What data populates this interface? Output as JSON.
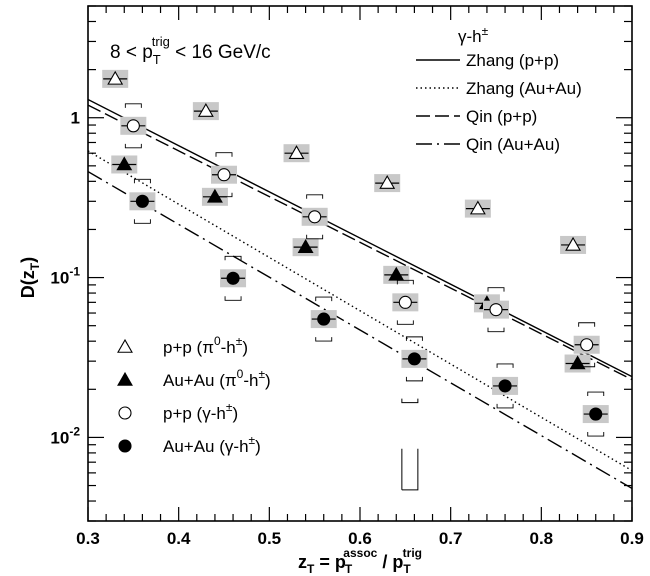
{
  "chart_data": {
    "type": "scatter",
    "xlabel": "z_T = p_T^assoc / p_T^trig",
    "ylabel": "D(z_T)",
    "yscale": "log",
    "xlim": [
      0.3,
      0.9
    ],
    "ylim": [
      0.003,
      5
    ],
    "x_ticks": [
      "0.3",
      "0.4",
      "0.5",
      "0.6",
      "0.7",
      "0.8",
      "0.9"
    ],
    "y_ticks": [
      {
        "value": 1,
        "base": "1",
        "exp": ""
      },
      {
        "value": 0.1,
        "base": "10",
        "exp": "-1"
      },
      {
        "value": 0.01,
        "base": "10",
        "exp": "-2"
      }
    ],
    "annotation": {
      "prefix": "8 < p",
      "sub": "T",
      "sup": "trig",
      "suffix": " < 16 GeV/c"
    },
    "curve_legend_title": "γ-h±",
    "curves": [
      {
        "name": "Zhang (p+p)",
        "style": "solid",
        "points": [
          [
            0.3,
            1.3
          ],
          [
            0.9,
            0.024
          ]
        ]
      },
      {
        "name": "Zhang (Au+Au)",
        "style": "dotted",
        "points": [
          [
            0.3,
            0.62
          ],
          [
            0.9,
            0.0062
          ]
        ]
      },
      {
        "name": "Qin (p+p)",
        "style": "dash",
        "points": [
          [
            0.3,
            1.2
          ],
          [
            0.9,
            0.023
          ]
        ]
      },
      {
        "name": "Qin (Au+Au)",
        "style": "dashdot",
        "points": [
          [
            0.3,
            0.46
          ],
          [
            0.9,
            0.0048
          ]
        ]
      }
    ],
    "series": [
      {
        "name": "p+p (π⁰-h±)",
        "marker": "open-triangle",
        "points": [
          {
            "x": 0.33,
            "y": 1.75,
            "sys": true
          },
          {
            "x": 0.43,
            "y": 1.1,
            "sys": true
          },
          {
            "x": 0.53,
            "y": 0.6,
            "sys": true
          },
          {
            "x": 0.63,
            "y": 0.39,
            "sys": true
          },
          {
            "x": 0.73,
            "y": 0.27,
            "sys": true
          },
          {
            "x": 0.835,
            "y": 0.16,
            "sys": true
          }
        ]
      },
      {
        "name": "Au+Au (π⁰-h±)",
        "marker": "filled-triangle",
        "points": [
          {
            "x": 0.34,
            "y": 0.51,
            "sys": true
          },
          {
            "x": 0.44,
            "y": 0.32,
            "sys": true
          },
          {
            "x": 0.54,
            "y": 0.155,
            "sys": true
          },
          {
            "x": 0.64,
            "y": 0.104,
            "sys": true
          },
          {
            "x": 0.74,
            "y": 0.069,
            "sys": true
          },
          {
            "x": 0.84,
            "y": 0.029,
            "sys": true
          }
        ]
      },
      {
        "name": "p+p (γ-h±)",
        "marker": "open-circle",
        "points": [
          {
            "x": 0.35,
            "y": 0.89,
            "sys": true
          },
          {
            "x": 0.45,
            "y": 0.44,
            "sys": true
          },
          {
            "x": 0.55,
            "y": 0.24,
            "sys": true
          },
          {
            "x": 0.65,
            "y": 0.07,
            "sys": true
          },
          {
            "x": 0.75,
            "y": 0.063,
            "sys": true
          },
          {
            "x": 0.85,
            "y": 0.038,
            "sys": true
          }
        ]
      },
      {
        "name": "Au+Au (γ-h±)",
        "marker": "filled-circle",
        "points": [
          {
            "x": 0.36,
            "y": 0.3,
            "sys": true
          },
          {
            "x": 0.46,
            "y": 0.099,
            "sys": true
          },
          {
            "x": 0.56,
            "y": 0.055,
            "sys": true
          },
          {
            "x": 0.66,
            "y": 0.031,
            "sys": true
          },
          {
            "x": 0.76,
            "y": 0.021,
            "sys": true
          },
          {
            "x": 0.86,
            "y": 0.014,
            "sys": true
          }
        ]
      }
    ],
    "series_legend": [
      {
        "marker": "open-triangle",
        "system": "p+p",
        "pair_a": "π",
        "pair_a_sup": "0",
        "pair_b": "-h",
        "pair_b_sup": "±"
      },
      {
        "marker": "filled-triangle",
        "system": "Au+Au",
        "pair_a": "π",
        "pair_a_sup": "0",
        "pair_b": "-h",
        "pair_b_sup": "±"
      },
      {
        "marker": "open-circle",
        "system": "p+p",
        "pair_a": "γ",
        "pair_a_sup": "",
        "pair_b": "-h",
        "pair_b_sup": "±"
      },
      {
        "marker": "filled-circle",
        "system": "Au+Au",
        "pair_a": "γ",
        "pair_a_sup": "",
        "pair_b": "-h",
        "pair_b_sup": "±"
      }
    ]
  }
}
